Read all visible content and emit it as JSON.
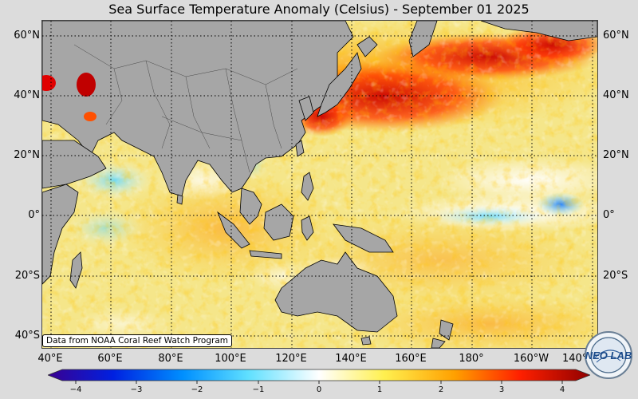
{
  "title": "Sea Surface Temperature Anomaly (Celsius) - September 01 2025",
  "credit": "Data from NOAA Coral Reef Watch Program",
  "logo_text": "NEO LAB",
  "lat_labels": [
    "60°N",
    "40°N",
    "20°N",
    "0°",
    "20°S",
    "40°S"
  ],
  "lon_labels": [
    "40°E",
    "60°E",
    "80°E",
    "100°E",
    "120°E",
    "140°E",
    "160°E",
    "180°",
    "160°W",
    "140°W"
  ],
  "colorbar": {
    "ticks": [
      "−4",
      "−3",
      "−2",
      "−1",
      "0",
      "1",
      "2",
      "3",
      "4"
    ],
    "colors": [
      "#2a0090",
      "#0040ff",
      "#00b0ff",
      "#a0f0ff",
      "#ffffff",
      "#fff060",
      "#ffc000",
      "#ff7000",
      "#e00000",
      "#900000"
    ]
  },
  "colors": {
    "land": "#a6a6a6",
    "ocean_base": "#f7e9a0",
    "grid": "#000000"
  }
}
